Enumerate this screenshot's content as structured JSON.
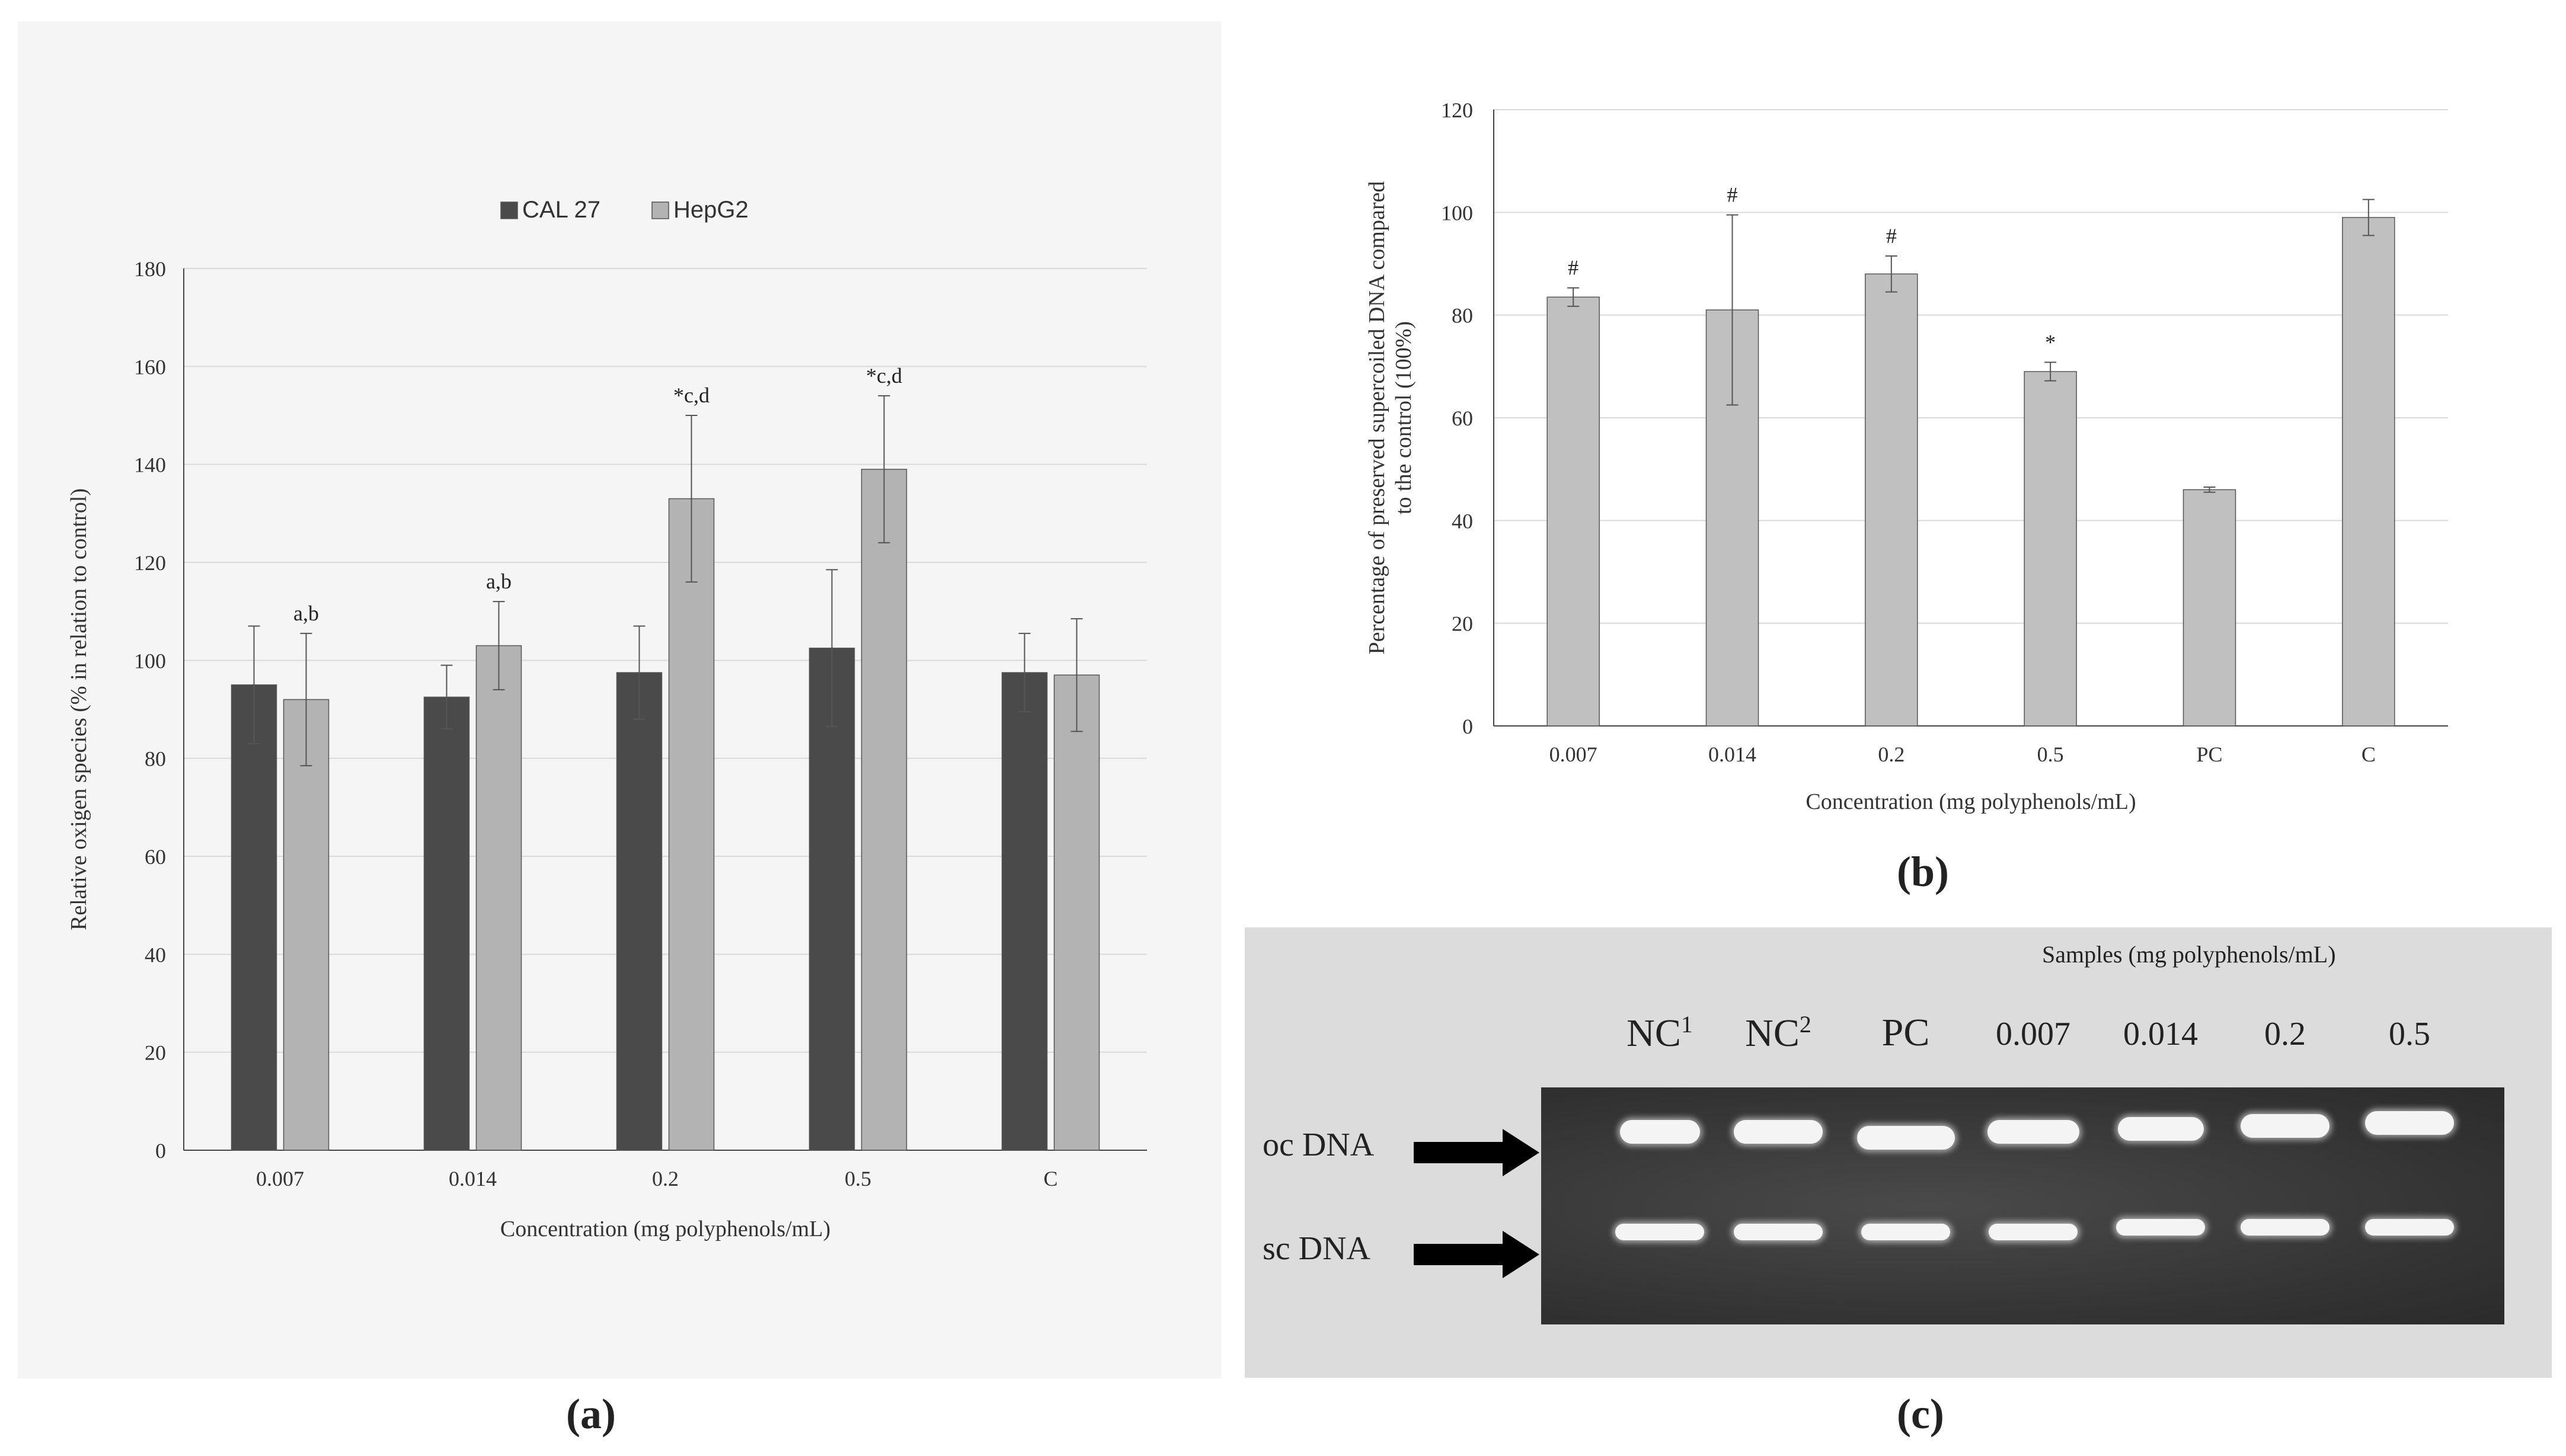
{
  "chart_data": [
    {
      "panel": "a",
      "type": "bar",
      "legend": [
        "CAL 27",
        "HepG2"
      ],
      "legend_position": "top-center",
      "xlabel": "Concentration (mg polyphenols/mL)",
      "ylabel": "Relative oxigen species (% in relation to control)",
      "categories": [
        "0.007",
        "0.014",
        "0.2",
        "0.5",
        "C"
      ],
      "ylim": [
        0,
        180
      ],
      "yticks": [
        0,
        20,
        40,
        60,
        80,
        100,
        120,
        140,
        160,
        180
      ],
      "series": [
        {
          "name": "CAL 27",
          "color": "#4a4a4a",
          "values": [
            95,
            92.5,
            97.5,
            102.5,
            97.5
          ],
          "errors": [
            12,
            6.5,
            9.5,
            16,
            8
          ]
        },
        {
          "name": "HepG2",
          "color": "#b3b3b3",
          "values": [
            92,
            103,
            133,
            139,
            97
          ],
          "errors": [
            13.5,
            9,
            17,
            15,
            11.5
          ]
        }
      ],
      "annotations": [
        "a,b",
        "a,b",
        "*c,d",
        "*c,d",
        ""
      ]
    },
    {
      "panel": "b",
      "type": "bar",
      "xlabel": "Concentration (mg polyphenols/mL)",
      "ylabel_lines": [
        "Percentage of preserved supercoiled DNA compared",
        "to the control (100%)"
      ],
      "categories": [
        "0.007",
        "0.014",
        "0.2",
        "0.5",
        "PC",
        "C"
      ],
      "ylim": [
        0,
        120
      ],
      "yticks": [
        0,
        20,
        40,
        60,
        80,
        100,
        120
      ],
      "series": [
        {
          "name": "DNA",
          "color": "#c0c0c0",
          "values": [
            83.5,
            81,
            88,
            69,
            46,
            99
          ],
          "errors": [
            1.8,
            18.5,
            3.5,
            1.8,
            0.5,
            3.5
          ]
        }
      ],
      "annotations": [
        "#",
        "#",
        "#",
        "*",
        "",
        ""
      ]
    }
  ],
  "captions": {
    "a": "(a)",
    "b": "(b)",
    "c": "(c)"
  },
  "gel": {
    "title": "Samples (mg polyphenols/mL)",
    "lanes": [
      {
        "label": "NC",
        "sup": "1"
      },
      {
        "label": "NC",
        "sup": "2"
      },
      {
        "label": "PC",
        "sup": ""
      },
      {
        "label": "0.007",
        "sup": ""
      },
      {
        "label": "0.014",
        "sup": ""
      },
      {
        "label": "0.2",
        "sup": ""
      },
      {
        "label": "0.5",
        "sup": ""
      }
    ],
    "oc_label": "oc DNA",
    "sc_label": "sc DNA"
  }
}
